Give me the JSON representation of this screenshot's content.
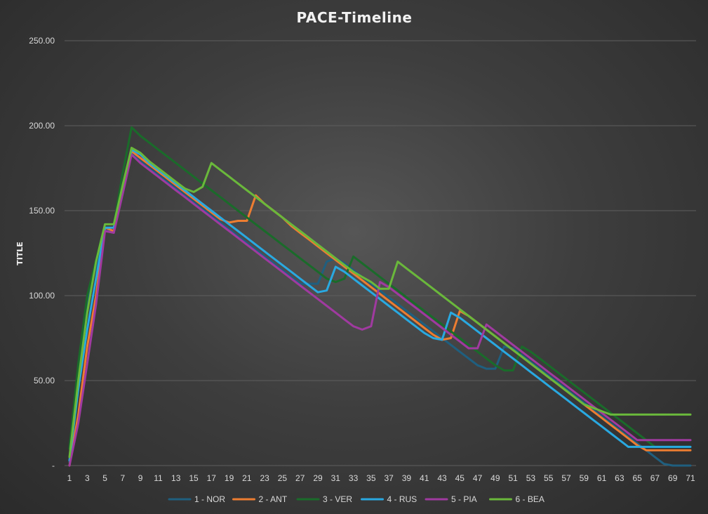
{
  "chart_data": {
    "type": "line",
    "title": "PACE-Timeline",
    "xlabel": "",
    "ylabel": "TITLE",
    "ylim": [
      0,
      250
    ],
    "y_ticks": [
      "-",
      "50.00",
      "100.00",
      "150.00",
      "200.00",
      "250.00"
    ],
    "x": [
      1,
      2,
      3,
      4,
      5,
      6,
      7,
      8,
      9,
      10,
      11,
      12,
      13,
      14,
      15,
      16,
      17,
      18,
      19,
      20,
      21,
      22,
      23,
      24,
      25,
      26,
      27,
      28,
      29,
      30,
      31,
      32,
      33,
      34,
      35,
      36,
      37,
      38,
      39,
      40,
      41,
      42,
      43,
      44,
      45,
      46,
      47,
      48,
      49,
      50,
      51,
      52,
      53,
      54,
      55,
      56,
      57,
      58,
      59,
      60,
      61,
      62,
      63,
      64,
      65,
      66,
      67,
      68,
      69,
      70,
      71
    ],
    "x_tick_labels": [
      "1",
      "3",
      "5",
      "7",
      "9",
      "11",
      "13",
      "15",
      "17",
      "19",
      "21",
      "23",
      "25",
      "27",
      "29",
      "31",
      "33",
      "35",
      "37",
      "39",
      "41",
      "43",
      "45",
      "47",
      "49",
      "51",
      "53",
      "55",
      "57",
      "59",
      "61",
      "63",
      "65",
      "67",
      "69",
      "71"
    ],
    "grid": true,
    "legend_position": "bottom",
    "series": [
      {
        "name": "1 - NOR",
        "color": "#1f5f7f",
        "values": [
          2,
          50,
          97,
          117,
          138,
          138,
          160,
          184,
          179,
          175,
          171,
          167,
          163,
          159,
          155,
          151,
          147,
          143,
          139,
          135,
          131,
          127,
          123,
          119,
          115,
          111,
          107,
          107,
          107,
          120,
          122,
          119,
          115,
          111,
          107,
          103,
          99,
          95,
          91,
          87,
          83,
          79,
          75,
          71,
          67,
          63,
          59,
          57,
          57,
          70,
          69,
          65,
          61,
          57,
          53,
          49,
          45,
          41,
          37,
          33,
          29,
          25,
          21,
          17,
          13,
          9,
          5,
          1,
          -1,
          -1,
          -1
        ]
      },
      {
        "name": "2 - ANT",
        "color": "#ed7d31",
        "values": [
          0,
          30,
          70,
          100,
          140,
          138,
          165,
          185,
          181,
          177,
          173,
          169,
          165,
          161,
          157,
          153,
          149,
          145,
          143,
          144,
          144,
          159,
          154,
          150,
          146,
          141,
          137,
          133,
          129,
          125,
          121,
          117,
          113,
          109,
          105,
          101,
          97,
          93,
          89,
          85,
          81,
          77,
          74,
          75,
          91,
          88,
          84,
          80,
          76,
          72,
          68,
          64,
          60,
          56,
          52,
          48,
          44,
          40,
          36,
          32,
          28,
          24,
          20,
          16,
          12,
          9,
          9,
          9,
          9,
          9,
          9
        ]
      },
      {
        "name": "3 - VER",
        "color": "#1a6b2a",
        "values": [
          10,
          60,
          100,
          121,
          142,
          142,
          172,
          199,
          194,
          190,
          186,
          182,
          178,
          174,
          170,
          166,
          162,
          158,
          154,
          150,
          146,
          142,
          138,
          134,
          130,
          126,
          122,
          118,
          114,
          110,
          108,
          110,
          123,
          119,
          115,
          111,
          107,
          103,
          99,
          95,
          91,
          87,
          83,
          79,
          75,
          71,
          67,
          63,
          59,
          56,
          56,
          70,
          67,
          63,
          59,
          55,
          51,
          47,
          43,
          39,
          35,
          31,
          27,
          23,
          19,
          15,
          11,
          11,
          11,
          11,
          11
        ]
      },
      {
        "name": "4 - RUS",
        "color": "#29a9e1",
        "values": [
          3,
          45,
          80,
          110,
          140,
          140,
          162,
          186,
          183,
          178,
          174,
          170,
          166,
          162,
          158,
          154,
          150,
          146,
          142,
          138,
          134,
          130,
          126,
          122,
          118,
          114,
          110,
          106,
          102,
          103,
          117,
          114,
          110,
          106,
          102,
          98,
          94,
          90,
          86,
          82,
          78,
          75,
          74,
          90,
          87,
          83,
          79,
          75,
          71,
          67,
          63,
          59,
          55,
          51,
          47,
          43,
          39,
          35,
          31,
          27,
          23,
          19,
          15,
          11,
          11,
          11,
          11,
          11,
          11,
          11,
          11
        ]
      },
      {
        "name": "5 - PIA",
        "color": "#a03aa0",
        "values": [
          0,
          25,
          60,
          95,
          138,
          137,
          160,
          183,
          178,
          174,
          170,
          166,
          162,
          158,
          154,
          150,
          146,
          142,
          138,
          134,
          130,
          126,
          122,
          118,
          114,
          110,
          106,
          102,
          98,
          94,
          90,
          86,
          82,
          80,
          82,
          108,
          105,
          101,
          97,
          93,
          89,
          85,
          81,
          77,
          73,
          69,
          69,
          83,
          79,
          75,
          71,
          67,
          63,
          59,
          55,
          51,
          47,
          43,
          39,
          35,
          31,
          27,
          23,
          19,
          15,
          15,
          15,
          15,
          15,
          15,
          15
        ]
      },
      {
        "name": "6 - BEA",
        "color": "#6ab83b",
        "values": [
          5,
          50,
          90,
          120,
          142,
          142,
          165,
          187,
          184,
          179,
          175,
          171,
          167,
          163,
          161,
          164,
          178,
          174,
          170,
          166,
          162,
          158,
          154,
          150,
          146,
          142,
          138,
          134,
          130,
          126,
          122,
          118,
          114,
          111,
          108,
          104,
          104,
          120,
          116,
          112,
          108,
          104,
          100,
          96,
          92,
          88,
          84,
          80,
          76,
          72,
          68,
          64,
          60,
          56,
          52,
          48,
          44,
          40,
          36,
          34,
          32,
          30,
          30,
          30,
          30,
          30,
          30,
          30,
          30,
          30,
          30
        ]
      }
    ]
  }
}
